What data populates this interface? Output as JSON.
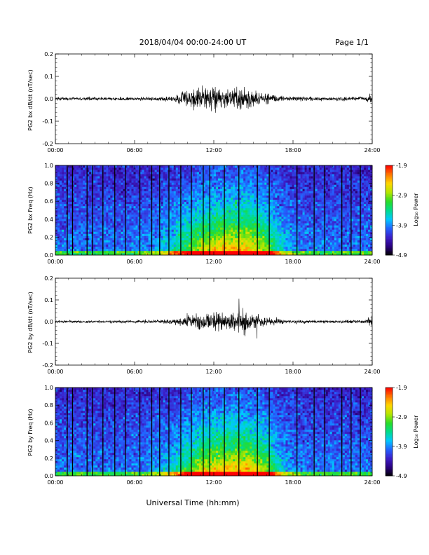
{
  "header": {
    "title": "2018/04/04  00:00-24:00 UT",
    "page": "Page 1/1"
  },
  "footer": {
    "xlabel": "Universal Time (hh:mm)"
  },
  "colorbar": {
    "label": "Log₁₀ Power",
    "ticks": [
      "-1.9",
      "-2.9",
      "-3.9",
      "-4.9"
    ],
    "range": [
      -4.9,
      -1.9
    ],
    "palette": [
      "#000000",
      "#2b0080",
      "#3c1ec8",
      "#2262ff",
      "#00c8ff",
      "#00dc8c",
      "#28dc28",
      "#b4e600",
      "#ffd700",
      "#ff7800",
      "#ff0000"
    ]
  },
  "chart_data": [
    {
      "type": "line",
      "ylabel": "PG2 bx dB/dt (nT/sec)",
      "xlim": [
        0,
        24
      ],
      "ylim": [
        -0.2,
        0.2
      ],
      "x_ticks": [
        "00:00",
        "06:00",
        "12:00",
        "18:00",
        "24:00"
      ],
      "y_ticks": [
        "0.2",
        "0.1",
        "0.0",
        "-0.1",
        "-0.2"
      ],
      "envelope": {
        "hours": [
          0,
          6,
          9,
          10,
          11,
          12,
          13,
          14,
          15,
          16,
          17,
          18,
          21,
          23.5,
          24
        ],
        "amplitude": [
          0.007,
          0.007,
          0.012,
          0.035,
          0.055,
          0.06,
          0.04,
          0.05,
          0.045,
          0.025,
          0.015,
          0.01,
          0.008,
          0.01,
          0.03
        ]
      }
    },
    {
      "type": "heatmap",
      "ylabel": "PG2 bx Freq (Hz)",
      "xlim": [
        0,
        24
      ],
      "ylim": [
        0.0,
        1.0
      ],
      "x_ticks": [
        "00:00",
        "06:00",
        "12:00",
        "18:00",
        "24:00"
      ],
      "y_ticks": [
        "1.0",
        "0.8",
        "0.6",
        "0.4",
        "0.2",
        "0.0"
      ],
      "zlim": [
        -4.9,
        -1.9
      ],
      "dropout_hours": [
        0.9,
        1.3,
        2.4,
        2.8,
        3.6,
        4.5,
        5.3,
        6.4,
        7.3,
        7.9,
        8.6,
        9.5,
        10.3,
        11.2,
        11.7,
        12.8,
        13.9,
        15.3,
        16.2,
        18.3,
        19.6,
        20.4,
        21.7,
        22.4,
        23.1
      ]
    },
    {
      "type": "line",
      "ylabel": "PG2 by dB/dt (nT/sec)",
      "xlim": [
        0,
        24
      ],
      "ylim": [
        -0.2,
        0.2
      ],
      "x_ticks": [
        "00:00",
        "06:00",
        "12:00",
        "18:00",
        "24:00"
      ],
      "y_ticks": [
        "0.2",
        "0.1",
        "0.0",
        "-0.1",
        "-0.2"
      ],
      "envelope": {
        "hours": [
          0,
          6,
          9,
          10,
          11,
          12,
          13,
          14,
          14.5,
          15,
          16,
          17,
          18,
          21,
          23.5,
          24
        ],
        "amplitude": [
          0.006,
          0.006,
          0.01,
          0.03,
          0.045,
          0.05,
          0.035,
          0.055,
          0.065,
          0.04,
          0.02,
          0.012,
          0.008,
          0.006,
          0.008,
          0.03
        ]
      }
    },
    {
      "type": "heatmap",
      "ylabel": "PG2 by Freq (Hz)",
      "xlim": [
        0,
        24
      ],
      "ylim": [
        0.0,
        1.0
      ],
      "x_ticks": [
        "00:00",
        "06:00",
        "12:00",
        "18:00",
        "24:00"
      ],
      "y_ticks": [
        "1.0",
        "0.8",
        "0.6",
        "0.4",
        "0.2",
        "0.0"
      ],
      "zlim": [
        -4.9,
        -1.9
      ],
      "dropout_hours": [
        0.9,
        1.3,
        2.4,
        2.8,
        3.6,
        4.5,
        5.3,
        6.4,
        7.3,
        7.9,
        8.6,
        9.5,
        10.3,
        11.2,
        11.7,
        12.8,
        13.9,
        15.3,
        16.2,
        18.3,
        19.6,
        20.4,
        21.7,
        22.4,
        23.1
      ]
    }
  ]
}
